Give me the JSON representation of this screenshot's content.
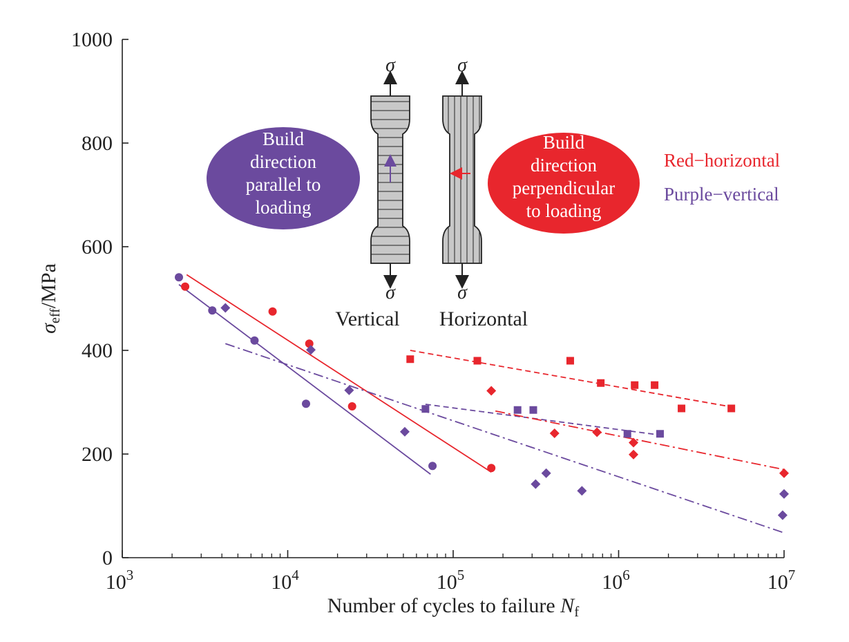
{
  "colors": {
    "red": "#e8262d",
    "purple": "#6b4a9e",
    "axis": "#222222",
    "specimen_fill": "#c8c8c8"
  },
  "chart_data": {
    "type": "scatter",
    "xscale": "log",
    "xlim": [
      1000,
      10000000
    ],
    "ylim": [
      0,
      1000
    ],
    "xticks": [
      {
        "value": 1000,
        "base": "10",
        "exp": "3"
      },
      {
        "value": 10000,
        "base": "10",
        "exp": "4"
      },
      {
        "value": 100000,
        "base": "10",
        "exp": "5"
      },
      {
        "value": 1000000,
        "base": "10",
        "exp": "6"
      },
      {
        "value": 10000000,
        "base": "10",
        "exp": "7"
      }
    ],
    "yticks": [
      0,
      200,
      400,
      600,
      800,
      1000
    ],
    "xlabel": {
      "text": "Number of cycles to failure ",
      "var": "N",
      "sub": "f"
    },
    "ylabel": {
      "var": "σ",
      "sub": "eff",
      "text": "/MPa"
    },
    "legend": [
      {
        "text": "Red−horizontal",
        "color": "red"
      },
      {
        "text": "Purple−vertical",
        "color": "purple"
      }
    ],
    "series": [
      {
        "color": "red",
        "marker": "circle",
        "points": [
          [
            2400,
            523
          ],
          [
            8100,
            475
          ],
          [
            13500,
            413
          ],
          [
            24500,
            292
          ],
          [
            170000,
            173
          ]
        ]
      },
      {
        "color": "red",
        "marker": "square",
        "points": [
          [
            55000,
            383
          ],
          [
            140000,
            380
          ],
          [
            510000,
            380
          ],
          [
            780000,
            337
          ],
          [
            1250000,
            333
          ],
          [
            1650000,
            333
          ],
          [
            2400000,
            288
          ],
          [
            4800000,
            288
          ]
        ]
      },
      {
        "color": "red",
        "marker": "diamond",
        "points": [
          [
            170000,
            322
          ],
          [
            410000,
            240
          ],
          [
            740000,
            242
          ],
          [
            1230000,
            222
          ],
          [
            1230000,
            199
          ],
          [
            10000000,
            163
          ]
        ]
      },
      {
        "color": "purple",
        "marker": "circle",
        "points": [
          [
            2200,
            541
          ],
          [
            3500,
            477
          ],
          [
            6300,
            419
          ],
          [
            12900,
            297
          ],
          [
            75000,
            177
          ]
        ]
      },
      {
        "color": "purple",
        "marker": "square",
        "points": [
          [
            68000,
            287
          ],
          [
            245000,
            285
          ],
          [
            305000,
            285
          ],
          [
            1130000,
            239
          ],
          [
            1780000,
            239
          ]
        ]
      },
      {
        "color": "purple",
        "marker": "diamond",
        "points": [
          [
            4200,
            482
          ],
          [
            13800,
            401
          ],
          [
            23500,
            323
          ],
          [
            51000,
            243
          ],
          [
            315000,
            142
          ],
          [
            365000,
            163
          ],
          [
            600000,
            129
          ],
          [
            10000000,
            123
          ],
          [
            9800000,
            82
          ]
        ]
      }
    ],
    "fit_lines": [
      {
        "color": "red",
        "style": "solid",
        "from": [
          2450,
          546
        ],
        "to": [
          170000,
          165
        ]
      },
      {
        "color": "purple",
        "style": "solid",
        "from": [
          2200,
          527
        ],
        "to": [
          73000,
          161
        ]
      },
      {
        "color": "red",
        "style": "dashed",
        "from": [
          55000,
          400
        ],
        "to": [
          4800000,
          291
        ]
      },
      {
        "color": "purple",
        "style": "dashed",
        "from": [
          68000,
          296
        ],
        "to": [
          1850000,
          236
        ]
      },
      {
        "color": "red",
        "style": "dashdot",
        "from": [
          180000,
          283
        ],
        "to": [
          10000000,
          170
        ]
      },
      {
        "color": "purple",
        "style": "dashdot",
        "from": [
          4200,
          413
        ],
        "to": [
          10000000,
          48
        ]
      }
    ]
  },
  "inset": {
    "purple_bubble": [
      "Build",
      "direction",
      "parallel to",
      "loading"
    ],
    "red_bubble": [
      "Build",
      "direction",
      "perpendicular",
      "to loading"
    ],
    "vertical_label": "Vertical",
    "horizontal_label": "Horizontal",
    "sigma": "σ"
  }
}
